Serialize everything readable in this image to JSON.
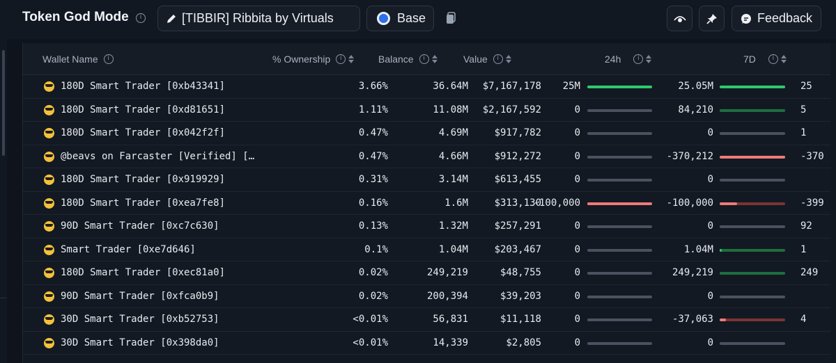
{
  "header": {
    "title": "Token God Mode",
    "token_label": "[TIBBIR] Ribbita by Virtuals",
    "chain_label": "Base",
    "feedback_label": "Feedback"
  },
  "table": {
    "columns": [
      "Wallet Name",
      "% Ownership",
      "Balance",
      "Value",
      "24h",
      "7D"
    ],
    "rows": [
      {
        "name": "180D Smart Trader [0xb43341]",
        "ownership": "3.66%",
        "balance": "36.64M",
        "value": "$7,167,178",
        "d24": "25M",
        "d24_fill": 1.0,
        "d24_color": "#2ec96b",
        "d7": "25.05M",
        "d7_fill": 1.0,
        "d7_color": "#2ec96b",
        "d30": "25"
      },
      {
        "name": "180D Smart Trader [0xd81651]",
        "ownership": "1.11%",
        "balance": "11.08M",
        "value": "$2,167,592",
        "d24": "0",
        "d24_fill": 0,
        "d24_color": "#4a5260",
        "d7": "84,210",
        "d7_fill": 1.0,
        "d7_color": "#1f6e3f",
        "d30": "5"
      },
      {
        "name": "180D Smart Trader [0x042f2f]",
        "ownership": "0.47%",
        "balance": "4.69M",
        "value": "$917,782",
        "d24": "0",
        "d24_fill": 0,
        "d24_color": "#4a5260",
        "d7": "0",
        "d7_fill": 0,
        "d7_color": "#4a5260",
        "d30": "1"
      },
      {
        "name": "@beavs on Farcaster [Verified] […",
        "ownership": "0.47%",
        "balance": "4.66M",
        "value": "$912,272",
        "d24": "0",
        "d24_fill": 0,
        "d24_color": "#4a5260",
        "d7": "-370,212",
        "d7_fill": 1.0,
        "d7_color": "#f07a78",
        "d30": "-370"
      },
      {
        "name": "180D Smart Trader [0x919929]",
        "ownership": "0.31%",
        "balance": "3.14M",
        "value": "$613,455",
        "d24": "0",
        "d24_fill": 0,
        "d24_color": "#4a5260",
        "d7": "0",
        "d7_fill": 0,
        "d7_color": "#4a5260",
        "d30": ""
      },
      {
        "name": "180D Smart Trader [0xea7fe8]",
        "ownership": "0.16%",
        "balance": "1.6M",
        "value": "$313,130",
        "d24": "-100,000",
        "d24_fill": 1.0,
        "d24_color": "#f07a78",
        "d7": "-100,000",
        "d7_fill": 0.27,
        "d7_color": "#f07a78",
        "d7_rest": "#7a3434",
        "d30": "-399"
      },
      {
        "name": "90D Smart Trader [0xc7c630]",
        "ownership": "0.13%",
        "balance": "1.32M",
        "value": "$257,291",
        "d24": "0",
        "d24_fill": 0,
        "d24_color": "#4a5260",
        "d7": "0",
        "d7_fill": 0,
        "d7_color": "#4a5260",
        "d30": "92"
      },
      {
        "name": "Smart Trader [0xe7d646]",
        "ownership": "0.1%",
        "balance": "1.04M",
        "value": "$203,467",
        "d24": "0",
        "d24_fill": 0,
        "d24_color": "#4a5260",
        "d7": "1.04M",
        "d7_fill": 0.03,
        "d7_color": "#2ec96b",
        "d7_rest": "#1f6e3f",
        "d30": "1"
      },
      {
        "name": "180D Smart Trader [0xec81a0]",
        "ownership": "0.02%",
        "balance": "249,219",
        "value": "$48,755",
        "d24": "0",
        "d24_fill": 0,
        "d24_color": "#4a5260",
        "d7": "249,219",
        "d7_fill": 1.0,
        "d7_color": "#1f6e3f",
        "d30": "249"
      },
      {
        "name": "90D Smart Trader [0xfca0b9]",
        "ownership": "0.02%",
        "balance": "200,394",
        "value": "$39,203",
        "d24": "0",
        "d24_fill": 0,
        "d24_color": "#4a5260",
        "d7": "0",
        "d7_fill": 0,
        "d7_color": "#4a5260",
        "d30": ""
      },
      {
        "name": "30D Smart Trader [0xb52753]",
        "ownership": "<0.01%",
        "balance": "56,831",
        "value": "$11,118",
        "d24": "0",
        "d24_fill": 0,
        "d24_color": "#4a5260",
        "d7": "-37,063",
        "d7_fill": 0.1,
        "d7_color": "#f07a78",
        "d7_rest": "#7a3434",
        "d30": "4"
      },
      {
        "name": "30D Smart Trader [0x398da0]",
        "ownership": "<0.01%",
        "balance": "14,339",
        "value": "$2,805",
        "d24": "0",
        "d24_fill": 0,
        "d24_color": "#4a5260",
        "d7": "0",
        "d7_fill": 0,
        "d7_color": "#4a5260",
        "d30": ""
      }
    ]
  }
}
